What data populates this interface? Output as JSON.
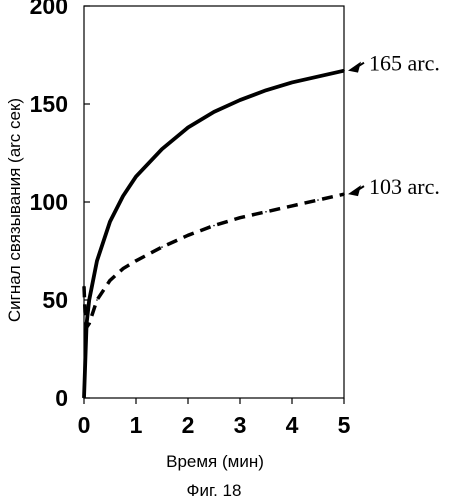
{
  "chart_data": {
    "type": "line",
    "title": "",
    "xlabel": "Время (мин)",
    "ylabel": "Сигнал связывания (arc сек)",
    "xlim": [
      0,
      5
    ],
    "ylim": [
      0,
      200
    ],
    "xticks": [
      "0",
      "1",
      "2",
      "3",
      "4",
      "5"
    ],
    "yticks": [
      "0",
      "50",
      "100",
      "150",
      "200"
    ],
    "grid": false,
    "legend": "none",
    "series": [
      {
        "style": "solid",
        "color": "#000000",
        "x": [
          0,
          0.05,
          0.1,
          0.25,
          0.5,
          0.75,
          1,
          1.5,
          2,
          2.5,
          3,
          3.5,
          4,
          4.5,
          5
        ],
        "y": [
          0,
          38,
          50,
          70,
          90,
          103,
          113,
          127,
          138,
          146,
          152,
          157,
          161,
          164,
          167
        ]
      },
      {
        "style": "dashed",
        "color": "#000000",
        "x": [
          0,
          0.02,
          0.05,
          0.1,
          0.25,
          0.5,
          0.75,
          1,
          1.5,
          2,
          2.5,
          3,
          3.5,
          4,
          4.5,
          5
        ],
        "y": [
          57,
          44,
          36,
          38,
          50,
          60,
          66,
          70,
          77,
          83,
          88,
          92,
          95,
          98,
          101,
          104
        ]
      }
    ],
    "annotations": [
      {
        "text": "165 arc.",
        "x": 5,
        "y": 167
      },
      {
        "text": "103 arc.",
        "x": 5,
        "y": 104
      }
    ],
    "caption": "Фиг. 18"
  }
}
